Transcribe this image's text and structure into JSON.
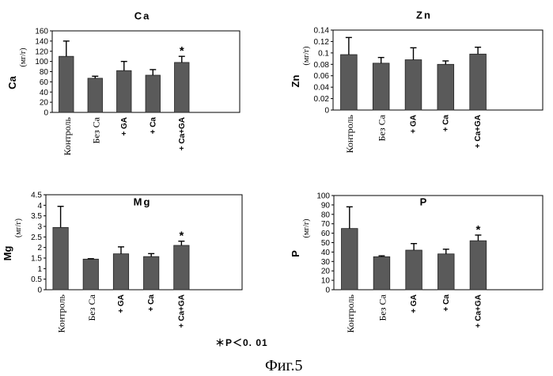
{
  "chart_data": [
    {
      "type": "bar",
      "title": "Ca",
      "ylabel": "Ca",
      "yunit": "(мг/г)",
      "ylim": [
        0,
        160
      ],
      "yticks": [
        "0",
        "20",
        "40",
        "60",
        "80",
        "100",
        "120",
        "140",
        "160"
      ],
      "categories": [
        "Контроль",
        "Без Ca",
        "+ GA",
        "+ Ca",
        "+ Ca+GA"
      ],
      "values": [
        110,
        67,
        82,
        73,
        98
      ],
      "errors": [
        30,
        4,
        18,
        11,
        12
      ],
      "significant": [
        false,
        false,
        false,
        false,
        true
      ],
      "grid": false
    },
    {
      "type": "bar",
      "title": "Zn",
      "ylabel": "Zn",
      "yunit": "(мг/г)",
      "ylim": [
        0,
        0.14
      ],
      "yticks": [
        "0",
        "0.02",
        "0.04",
        "0.06",
        "0.08",
        "0.1",
        "0.12",
        "0.14"
      ],
      "categories": [
        "Контроль",
        "Без Ca",
        "+ GA",
        "+ Ca",
        "+ Ca+GA"
      ],
      "values": [
        0.097,
        0.082,
        0.088,
        0.08,
        0.098
      ],
      "errors": [
        0.03,
        0.01,
        0.021,
        0.006,
        0.012
      ],
      "significant": [
        false,
        false,
        false,
        false,
        false
      ],
      "grid": false
    },
    {
      "type": "bar",
      "title": "Mg",
      "ylabel": "Mg",
      "yunit": "(мг/г)",
      "ylim": [
        0,
        4.5
      ],
      "yticks": [
        "0",
        "0.5",
        "1",
        "1.5",
        "2",
        "2.5",
        "3",
        "3.5",
        "4",
        "4.5"
      ],
      "categories": [
        "Контроль",
        "Без Ca",
        "+ GA",
        "+ Ca",
        "+ Ca+GA"
      ],
      "values": [
        2.95,
        1.45,
        1.7,
        1.57,
        2.1
      ],
      "errors": [
        1.0,
        0.02,
        0.33,
        0.14,
        0.2
      ],
      "significant": [
        false,
        false,
        false,
        false,
        true
      ],
      "grid": false
    },
    {
      "type": "bar",
      "title": "P",
      "ylabel": "P",
      "yunit": "(мг/г)",
      "ylim": [
        0,
        100
      ],
      "yticks": [
        "0",
        "10",
        "20",
        "30",
        "40",
        "50",
        "60",
        "70",
        "80",
        "90",
        "100"
      ],
      "categories": [
        "Контроль",
        "Без Ca",
        "+ GA",
        "+ Ca",
        "+ Ca+GA"
      ],
      "values": [
        65,
        35,
        42,
        38,
        52
      ],
      "errors": [
        23,
        1,
        7,
        5,
        6
      ],
      "significant": [
        false,
        false,
        false,
        false,
        true
      ],
      "grid": false
    }
  ],
  "significance_note": "＊P＜0. 01",
  "figure_caption": "Фиг.5",
  "colors": {
    "bar": "#5a5a5a",
    "axis": "#000000",
    "background": "#ffffff"
  }
}
